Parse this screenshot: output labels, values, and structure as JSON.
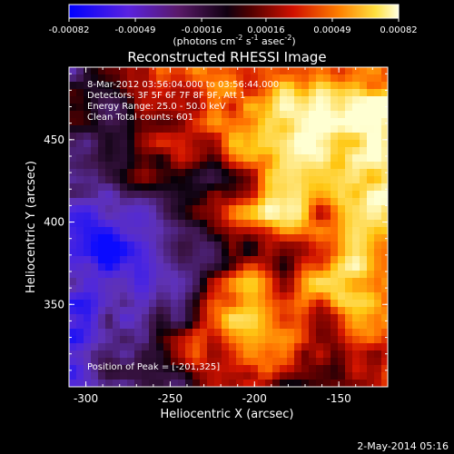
{
  "colorbar": {
    "ticks": [
      "-0.00082",
      "-0.00049",
      "-0.00016",
      "0.00016",
      "0.00049",
      "0.00082"
    ],
    "units_prefix": "(photons cm",
    "units_exp1": "-2",
    "units_mid": " s",
    "units_exp2": "-1",
    "units_mid2": " asec",
    "units_exp3": "-2",
    "units_suffix": ")"
  },
  "chart_data": {
    "type": "heatmap",
    "title": "Reconstructed RHESSI Image",
    "xlabel": "Heliocentric X (arcsec)",
    "ylabel": "Heliocentric Y (arcsec)",
    "xlim": [
      -310,
      -121
    ],
    "ylim": [
      300,
      494
    ],
    "x_ticks": [
      -300,
      -250,
      -200,
      -150
    ],
    "y_ticks": [
      350,
      400,
      450
    ],
    "colorbar_range": [
      -0.00082,
      0.00082
    ],
    "colormap": [
      "#0000ff",
      "#6a2bd1",
      "#3a1a3a",
      "#000000",
      "#8a0000",
      "#ff4000",
      "#ffc000",
      "#ffffc8"
    ],
    "annotations": [
      "8-Mar-2012 03:56:04.000 to 03:56:44.000",
      "Detectors: 3F 5F 6F 7F 8F 9F, Att 1",
      "Energy Range: 25.0 - 50.0 keV",
      "Clean    Total counts: 601",
      "Position of Peak = [-201,325]"
    ],
    "peak": [
      -201,
      325
    ]
  },
  "timestamp": "2-May-2014 05:16"
}
